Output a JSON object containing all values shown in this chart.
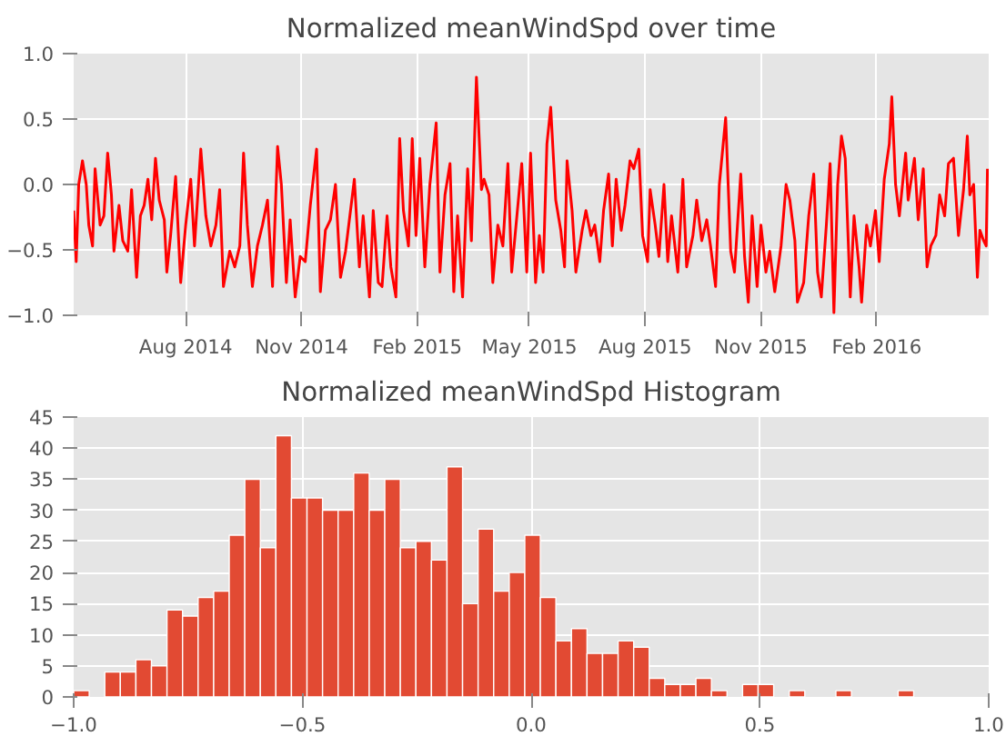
{
  "chart_data": [
    {
      "type": "line",
      "title": "Normalized meanWindSpd over time",
      "color": "#ff0000",
      "grid": true,
      "marker": "none",
      "line_style": "solid",
      "x": [
        "2014-05-04",
        "2014-05-06",
        "2014-05-08",
        "2014-05-11",
        "2014-05-14",
        "2014-05-16",
        "2014-05-19",
        "2014-05-21",
        "2014-05-25",
        "2014-05-28",
        "2014-05-31",
        "2014-06-03",
        "2014-06-05",
        "2014-06-09",
        "2014-06-12",
        "2014-06-16",
        "2014-06-19",
        "2014-06-23",
        "2014-06-26",
        "2014-06-29",
        "2014-07-02",
        "2014-07-05",
        "2014-07-08",
        "2014-07-11",
        "2014-07-15",
        "2014-07-17",
        "2014-07-20",
        "2014-07-24",
        "2014-07-28",
        "2014-08-01",
        "2014-08-05",
        "2014-08-08",
        "2014-08-13",
        "2014-08-17",
        "2014-08-21",
        "2014-08-25",
        "2014-08-28",
        "2014-08-31",
        "2014-09-05",
        "2014-09-09",
        "2014-09-13",
        "2014-09-16",
        "2014-09-19",
        "2014-09-23",
        "2014-09-27",
        "2014-10-01",
        "2014-10-05",
        "2014-10-09",
        "2014-10-13",
        "2014-10-16",
        "2014-10-20",
        "2014-10-23",
        "2014-10-27",
        "2014-10-31",
        "2014-11-04",
        "2014-11-08",
        "2014-11-13",
        "2014-11-16",
        "2014-11-20",
        "2014-11-24",
        "2014-11-28",
        "2014-12-02",
        "2014-12-06",
        "2014-12-13",
        "2014-12-17",
        "2014-12-20",
        "2014-12-25",
        "2014-12-28",
        "2015-01-01",
        "2015-01-04",
        "2015-01-08",
        "2015-01-11",
        "2015-01-15",
        "2015-01-18",
        "2015-01-21",
        "2015-01-25",
        "2015-01-28",
        "2015-01-31",
        "2015-02-03",
        "2015-02-07",
        "2015-02-11",
        "2015-02-16",
        "2015-02-19",
        "2015-02-23",
        "2015-02-27",
        "2015-03-02",
        "2015-03-05",
        "2015-03-09",
        "2015-03-13",
        "2015-03-16",
        "2015-03-20",
        "2015-03-24",
        "2015-03-26",
        "2015-03-30",
        "2015-04-02",
        "2015-04-06",
        "2015-04-10",
        "2015-04-14",
        "2015-04-17",
        "2015-04-25",
        "2015-04-29",
        "2015-05-02",
        "2015-05-06",
        "2015-05-09",
        "2015-05-12",
        "2015-05-15",
        "2015-05-18",
        "2015-05-22",
        "2015-05-26",
        "2015-05-29",
        "2015-05-31",
        "2015-06-04",
        "2015-06-07",
        "2015-06-12",
        "2015-06-15",
        "2015-06-19",
        "2015-06-22",
        "2015-06-26",
        "2015-06-29",
        "2015-07-03",
        "2015-07-06",
        "2015-07-09",
        "2015-07-13",
        "2015-07-16",
        "2015-07-20",
        "2015-07-23",
        "2015-07-27",
        "2015-07-30",
        "2015-08-03",
        "2015-08-05",
        "2015-08-09",
        "2015-08-12",
        "2015-08-16",
        "2015-08-19",
        "2015-08-22",
        "2015-08-27",
        "2015-08-31",
        "2015-09-03",
        "2015-09-08",
        "2015-09-11",
        "2015-09-15",
        "2015-09-19",
        "2015-09-22",
        "2015-09-26",
        "2015-09-29",
        "2015-10-04",
        "2015-10-08",
        "2015-10-11",
        "2015-10-16",
        "2015-10-19",
        "2015-10-22",
        "2015-10-25",
        "2015-10-29",
        "2015-11-01",
        "2015-11-05",
        "2015-11-08",
        "2015-11-12",
        "2015-11-17",
        "2015-11-21",
        "2015-11-24",
        "2015-11-28",
        "2015-11-30",
        "2015-12-05",
        "2015-12-09",
        "2015-12-13",
        "2015-12-16",
        "2015-12-19",
        "2015-12-23",
        "2015-12-26",
        "2015-12-29",
        "2016-01-01",
        "2016-01-04",
        "2016-01-07",
        "2016-01-11",
        "2016-01-14",
        "2016-01-18",
        "2016-01-20",
        "2016-01-24",
        "2016-01-27",
        "2016-01-31",
        "2016-02-03",
        "2016-02-07",
        "2016-02-11",
        "2016-02-13",
        "2016-02-16",
        "2016-02-19",
        "2016-02-24",
        "2016-02-26",
        "2016-03-02",
        "2016-03-05",
        "2016-03-09",
        "2016-03-12",
        "2016-03-15",
        "2016-03-19",
        "2016-03-22",
        "2016-03-26",
        "2016-03-29",
        "2016-04-02",
        "2016-04-06",
        "2016-04-10",
        "2016-04-13",
        "2016-04-15",
        "2016-04-18",
        "2016-04-21",
        "2016-04-23",
        "2016-04-26",
        "2016-04-28",
        "2016-04-29"
      ],
      "values": [
        -0.2,
        -0.59,
        0.0,
        0.18,
        0.0,
        -0.31,
        -0.47,
        0.12,
        -0.31,
        -0.24,
        0.24,
        -0.08,
        -0.51,
        -0.16,
        -0.43,
        -0.51,
        -0.04,
        -0.71,
        -0.24,
        -0.16,
        0.04,
        -0.27,
        0.2,
        -0.12,
        -0.27,
        -0.67,
        -0.39,
        0.06,
        -0.75,
        -0.31,
        0.04,
        -0.47,
        0.27,
        -0.24,
        -0.47,
        -0.31,
        -0.04,
        -0.78,
        -0.51,
        -0.63,
        -0.47,
        0.24,
        -0.31,
        -0.78,
        -0.47,
        -0.31,
        -0.12,
        -0.78,
        0.29,
        0.0,
        -0.75,
        -0.27,
        -0.86,
        -0.55,
        -0.59,
        -0.16,
        0.27,
        -0.82,
        -0.35,
        -0.27,
        0.0,
        -0.71,
        -0.51,
        0.04,
        -0.63,
        -0.24,
        -0.86,
        -0.2,
        -0.75,
        -0.78,
        -0.24,
        -0.63,
        -0.86,
        0.35,
        -0.2,
        -0.47,
        0.35,
        -0.39,
        0.2,
        -0.63,
        0.0,
        0.47,
        -0.67,
        -0.08,
        0.16,
        -0.82,
        -0.24,
        -0.86,
        0.12,
        -0.43,
        0.82,
        -0.04,
        0.04,
        -0.08,
        -0.75,
        -0.31,
        -0.47,
        0.16,
        -0.67,
        0.16,
        -0.67,
        0.24,
        -0.75,
        -0.39,
        -0.67,
        0.31,
        0.59,
        -0.12,
        -0.35,
        -0.63,
        0.18,
        -0.2,
        -0.67,
        -0.35,
        -0.2,
        -0.39,
        -0.31,
        -0.59,
        -0.2,
        0.08,
        -0.47,
        0.04,
        -0.35,
        -0.16,
        0.18,
        0.12,
        0.27,
        -0.39,
        -0.59,
        -0.04,
        -0.31,
        -0.55,
        0.0,
        -0.59,
        -0.24,
        -0.67,
        0.04,
        -0.63,
        -0.39,
        -0.12,
        -0.43,
        -0.27,
        -0.47,
        -0.78,
        0.0,
        0.51,
        -0.51,
        -0.67,
        0.08,
        -0.55,
        -0.9,
        -0.24,
        -0.78,
        -0.31,
        -0.67,
        -0.51,
        -0.82,
        -0.47,
        0.0,
        -0.12,
        -0.43,
        -0.9,
        -0.75,
        -0.24,
        0.08,
        -0.67,
        -0.86,
        -0.31,
        0.16,
        -0.98,
        0.0,
        0.37,
        0.2,
        -0.86,
        -0.24,
        -0.63,
        -0.9,
        -0.31,
        -0.47,
        -0.2,
        -0.59,
        0.04,
        0.31,
        0.67,
        0.0,
        -0.24,
        0.24,
        -0.12,
        0.2,
        -0.27,
        0.12,
        -0.63,
        -0.47,
        -0.39,
        -0.08,
        -0.24,
        0.16,
        0.2,
        -0.39,
        -0.04,
        0.37,
        -0.08,
        0.0,
        -0.71,
        -0.35,
        -0.43,
        -0.47,
        0.12
      ],
      "xlim": [
        "2014-05-04",
        "2016-04-30"
      ],
      "xticks": [
        {
          "value": "2014-08-01",
          "label": "Aug 2014"
        },
        {
          "value": "2014-11-01",
          "label": "Nov 2014"
        },
        {
          "value": "2015-02-01",
          "label": "Feb 2015"
        },
        {
          "value": "2015-05-01",
          "label": "May 2015"
        },
        {
          "value": "2015-08-01",
          "label": "Aug 2015"
        },
        {
          "value": "2015-11-01",
          "label": "Nov 2015"
        },
        {
          "value": "2016-02-01",
          "label": "Feb 2016"
        }
      ],
      "ylim": [
        -1.0,
        1.0
      ],
      "yticks": [
        {
          "value": -1.0,
          "label": "−1.0"
        },
        {
          "value": -0.5,
          "label": "−0.5"
        },
        {
          "value": 0.0,
          "label": "0.0"
        },
        {
          "value": 0.5,
          "label": "0.5"
        },
        {
          "value": 1.0,
          "label": "1.0"
        }
      ]
    },
    {
      "type": "histogram",
      "title": "Normalized meanWindSpd Histogram",
      "color": "#e24a33",
      "grid": true,
      "bins": [
        -1.0,
        -0.966,
        -0.932,
        -0.898,
        -0.864,
        -0.83,
        -0.796,
        -0.762,
        -0.728,
        -0.694,
        -0.66,
        -0.626,
        -0.592,
        -0.558,
        -0.524,
        -0.49,
        -0.456,
        -0.422,
        -0.388,
        -0.354,
        -0.32,
        -0.286,
        -0.252,
        -0.218,
        -0.184,
        -0.15,
        -0.116,
        -0.082,
        -0.048,
        -0.014,
        0.02,
        0.054,
        0.088,
        0.122,
        0.156,
        0.19,
        0.224,
        0.258,
        0.292,
        0.326,
        0.36,
        0.394,
        0.428,
        0.462,
        0.496,
        0.53,
        0.564,
        0.598,
        0.632,
        0.666,
        0.7,
        0.734,
        0.768,
        0.802,
        0.836
      ],
      "values": [
        1,
        0,
        4,
        4,
        6,
        5,
        14,
        13,
        16,
        17,
        26,
        35,
        24,
        42,
        32,
        32,
        30,
        30,
        36,
        30,
        35,
        24,
        25,
        22,
        37,
        15,
        27,
        17,
        20,
        26,
        16,
        9,
        11,
        7,
        7,
        9,
        8,
        3,
        2,
        2,
        3,
        1,
        0,
        2,
        2,
        0,
        1,
        0,
        0,
        1,
        0,
        0,
        0,
        1
      ],
      "xlim": [
        -1.0,
        1.0
      ],
      "xticks": [
        {
          "value": -1.0,
          "label": "−1.0"
        },
        {
          "value": -0.5,
          "label": "−0.5"
        },
        {
          "value": 0.0,
          "label": "0.0"
        },
        {
          "value": 0.5,
          "label": "0.5"
        },
        {
          "value": 1.0,
          "label": "1.0"
        }
      ],
      "ylim": [
        0,
        45
      ],
      "yticks": [
        0,
        5,
        10,
        15,
        20,
        25,
        30,
        35,
        40,
        45
      ]
    }
  ]
}
